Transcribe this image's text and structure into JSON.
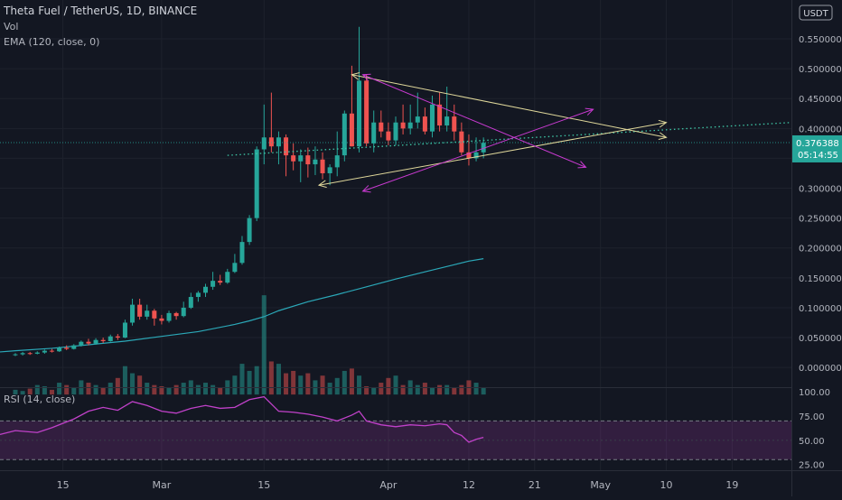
{
  "header": {
    "title": "Theta Fuel / TetherUS, 1D, BINANCE",
    "vol_label": "Vol",
    "ema_label": "EMA (120, close, 0)",
    "rsi_label": "RSI (14, close)",
    "currency": "USDT"
  },
  "badge": {
    "price": "0.376388",
    "countdown": "05:14:55"
  },
  "colors": {
    "background": "#131722",
    "up": "#26a69a",
    "down": "#ef5350",
    "ema": "#2ba8b8",
    "rsi": "#c041c9",
    "yellow_lines": "#dfd79a",
    "magenta_lines": "#c93ad1",
    "trend_dotted": "#3fc9a8"
  },
  "chart_data": {
    "type": "candlestick",
    "price_axis": {
      "ticks": [
        "0.550000",
        "0.500000",
        "0.450000",
        "0.400000",
        "0.350000",
        "0.300000",
        "0.250000",
        "0.200000",
        "0.150000",
        "0.100000",
        "0.050000",
        "0.000000"
      ],
      "range": [
        -0.03,
        0.615
      ]
    },
    "rsi_axis": {
      "ticks": [
        "100.00",
        "75.00",
        "50.00",
        "25.00"
      ],
      "range": [
        20,
        103
      ],
      "band": [
        30,
        70
      ]
    },
    "x_axis": {
      "labels": [
        {
          "label": "15",
          "index": 6.5
        },
        {
          "label": "Mar",
          "index": 20
        },
        {
          "label": "15",
          "index": 34
        },
        {
          "label": "Apr",
          "index": 51
        },
        {
          "label": "12",
          "index": 62
        },
        {
          "label": "21",
          "index": 71
        },
        {
          "label": "May",
          "index": 80
        },
        {
          "label": "10",
          "index": 89
        },
        {
          "label": "19",
          "index": 98
        }
      ],
      "index_range": [
        -2.1,
        106.1
      ]
    },
    "ohlc": [
      [
        0.021,
        0.024,
        0.019,
        0.022
      ],
      [
        0.022,
        0.026,
        0.02,
        0.024
      ],
      [
        0.024,
        0.026,
        0.021,
        0.023
      ],
      [
        0.023,
        0.027,
        0.022,
        0.025
      ],
      [
        0.025,
        0.03,
        0.023,
        0.028
      ],
      [
        0.028,
        0.031,
        0.025,
        0.027
      ],
      [
        0.027,
        0.035,
        0.026,
        0.033
      ],
      [
        0.033,
        0.037,
        0.029,
        0.031
      ],
      [
        0.031,
        0.039,
        0.03,
        0.037
      ],
      [
        0.037,
        0.045,
        0.035,
        0.043
      ],
      [
        0.043,
        0.048,
        0.037,
        0.04
      ],
      [
        0.04,
        0.049,
        0.038,
        0.046
      ],
      [
        0.046,
        0.05,
        0.041,
        0.044
      ],
      [
        0.044,
        0.055,
        0.043,
        0.052
      ],
      [
        0.052,
        0.056,
        0.046,
        0.05
      ],
      [
        0.05,
        0.08,
        0.049,
        0.075
      ],
      [
        0.075,
        0.115,
        0.07,
        0.105
      ],
      [
        0.105,
        0.115,
        0.08,
        0.085
      ],
      [
        0.085,
        0.105,
        0.08,
        0.095
      ],
      [
        0.095,
        0.098,
        0.07,
        0.082
      ],
      [
        0.082,
        0.088,
        0.072,
        0.078
      ],
      [
        0.078,
        0.095,
        0.075,
        0.091
      ],
      [
        0.091,
        0.093,
        0.08,
        0.086
      ],
      [
        0.086,
        0.11,
        0.084,
        0.1
      ],
      [
        0.1,
        0.125,
        0.098,
        0.118
      ],
      [
        0.118,
        0.128,
        0.11,
        0.125
      ],
      [
        0.125,
        0.14,
        0.118,
        0.135
      ],
      [
        0.135,
        0.16,
        0.13,
        0.145
      ],
      [
        0.145,
        0.155,
        0.138,
        0.142
      ],
      [
        0.142,
        0.165,
        0.14,
        0.16
      ],
      [
        0.16,
        0.19,
        0.158,
        0.175
      ],
      [
        0.175,
        0.22,
        0.172,
        0.21
      ],
      [
        0.21,
        0.255,
        0.205,
        0.25
      ],
      [
        0.25,
        0.37,
        0.245,
        0.365
      ],
      [
        0.365,
        0.44,
        0.34,
        0.385
      ],
      [
        0.385,
        0.46,
        0.36,
        0.37
      ],
      [
        0.37,
        0.395,
        0.34,
        0.385
      ],
      [
        0.385,
        0.39,
        0.32,
        0.355
      ],
      [
        0.355,
        0.375,
        0.33,
        0.345
      ],
      [
        0.345,
        0.365,
        0.31,
        0.355
      ],
      [
        0.355,
        0.368,
        0.318,
        0.34
      ],
      [
        0.34,
        0.37,
        0.322,
        0.348
      ],
      [
        0.348,
        0.36,
        0.315,
        0.325
      ],
      [
        0.325,
        0.34,
        0.305,
        0.335
      ],
      [
        0.335,
        0.395,
        0.32,
        0.355
      ],
      [
        0.355,
        0.43,
        0.345,
        0.425
      ],
      [
        0.425,
        0.505,
        0.37,
        0.37
      ],
      [
        0.37,
        0.57,
        0.36,
        0.48
      ],
      [
        0.48,
        0.49,
        0.37,
        0.375
      ],
      [
        0.375,
        0.43,
        0.36,
        0.41
      ],
      [
        0.41,
        0.43,
        0.385,
        0.395
      ],
      [
        0.395,
        0.41,
        0.372,
        0.38
      ],
      [
        0.38,
        0.42,
        0.372,
        0.41
      ],
      [
        0.41,
        0.44,
        0.39,
        0.4
      ],
      [
        0.4,
        0.44,
        0.39,
        0.41
      ],
      [
        0.41,
        0.46,
        0.4,
        0.42
      ],
      [
        0.42,
        0.435,
        0.39,
        0.395
      ],
      [
        0.395,
        0.455,
        0.385,
        0.44
      ],
      [
        0.44,
        0.46,
        0.395,
        0.405
      ],
      [
        0.405,
        0.47,
        0.395,
        0.42
      ],
      [
        0.42,
        0.44,
        0.38,
        0.395
      ],
      [
        0.395,
        0.41,
        0.355,
        0.36
      ],
      [
        0.36,
        0.39,
        0.338,
        0.35
      ],
      [
        0.35,
        0.385,
        0.345,
        0.36
      ],
      [
        0.36,
        0.385,
        0.35,
        0.376
      ]
    ],
    "volume": [
      2,
      1.5,
      2.5,
      4,
      3.5,
      2,
      5,
      4,
      3,
      6,
      5,
      4,
      3,
      5,
      7,
      12,
      9,
      8,
      5,
      4,
      3.5,
      3,
      4,
      5,
      6,
      4,
      5,
      4,
      3,
      6,
      8,
      13,
      10,
      12,
      42,
      14,
      13,
      9,
      10,
      8,
      9,
      6,
      8,
      5,
      7,
      10,
      11,
      8,
      3.5,
      3,
      5,
      7,
      8,
      4,
      6,
      4,
      5,
      3,
      4,
      4,
      3,
      4,
      6,
      5,
      3
    ],
    "volume_max": 42,
    "ema": [
      [
        -2.1,
        0.026
      ],
      [
        0,
        0.028
      ],
      [
        5,
        0.032
      ],
      [
        10,
        0.038
      ],
      [
        15,
        0.044
      ],
      [
        20,
        0.052
      ],
      [
        25,
        0.06
      ],
      [
        30,
        0.072
      ],
      [
        32,
        0.078
      ],
      [
        34,
        0.085
      ],
      [
        36,
        0.095
      ],
      [
        40,
        0.11
      ],
      [
        44,
        0.122
      ],
      [
        48,
        0.135
      ],
      [
        52,
        0.148
      ],
      [
        56,
        0.16
      ],
      [
        60,
        0.172
      ],
      [
        62,
        0.178
      ],
      [
        64,
        0.182
      ]
    ],
    "rsi": [
      [
        -2.1,
        56
      ],
      [
        0,
        60
      ],
      [
        3,
        58
      ],
      [
        5,
        63
      ],
      [
        8,
        72
      ],
      [
        10,
        80
      ],
      [
        12,
        84
      ],
      [
        14,
        81
      ],
      [
        16,
        90
      ],
      [
        18,
        86
      ],
      [
        20,
        80
      ],
      [
        22,
        78
      ],
      [
        24,
        83
      ],
      [
        26,
        86
      ],
      [
        28,
        83
      ],
      [
        30,
        84
      ],
      [
        32,
        92
      ],
      [
        34,
        95
      ],
      [
        36,
        80
      ],
      [
        38,
        79
      ],
      [
        40,
        77
      ],
      [
        42,
        74
      ],
      [
        44,
        70
      ],
      [
        46,
        76
      ],
      [
        47,
        80
      ],
      [
        48,
        70
      ],
      [
        50,
        66
      ],
      [
        52,
        64
      ],
      [
        54,
        66
      ],
      [
        56,
        65
      ],
      [
        58,
        67
      ],
      [
        59,
        66
      ],
      [
        60,
        58
      ],
      [
        61,
        55
      ],
      [
        62,
        48
      ],
      [
        63,
        51
      ],
      [
        64,
        53
      ]
    ],
    "last_price": 0.376388,
    "trend_lines": [
      {
        "from": [
          46,
          0.49
        ],
        "to": [
          89,
          0.385
        ],
        "color": "yellow",
        "arrow_from": true,
        "arrow_to": true
      },
      {
        "from": [
          41.5,
          0.305
        ],
        "to": [
          89,
          0.41
        ],
        "color": "yellow",
        "arrow_from": true,
        "arrow_to": true
      },
      {
        "from": [
          47.5,
          0.49
        ],
        "to": [
          78,
          0.335
        ],
        "color": "magenta",
        "arrow_from": true,
        "arrow_to": true
      },
      {
        "from": [
          47.5,
          0.295
        ],
        "to": [
          79,
          0.432
        ],
        "color": "magenta",
        "arrow_from": true,
        "arrow_to": true
      }
    ],
    "dotted_trend": {
      "from": [
        29,
        0.355
      ],
      "to": [
        106.1,
        0.41
      ]
    }
  }
}
